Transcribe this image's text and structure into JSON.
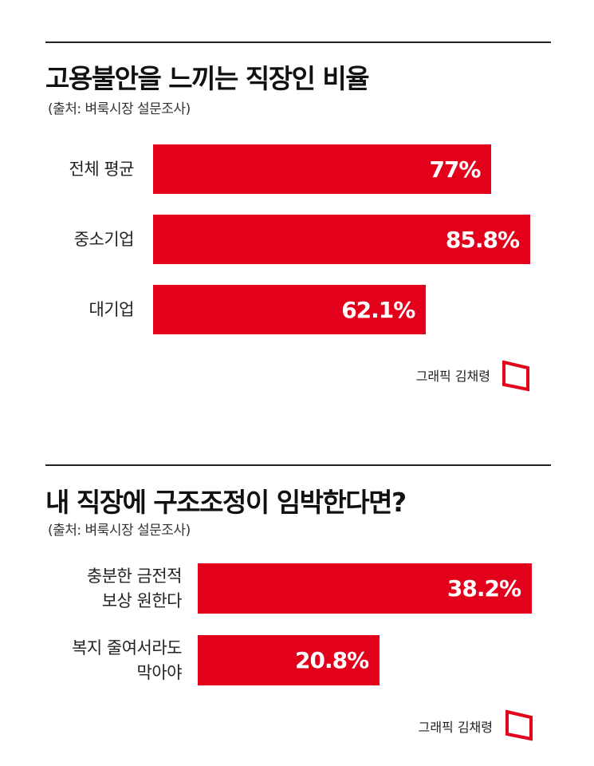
{
  "chart_data": [
    {
      "type": "bar",
      "orientation": "horizontal",
      "title": "고용불안을 느끼는 직장인 비율",
      "subtitle": "(출처: 벼룩시장 설문조사)",
      "categories": [
        "전체 평균",
        "중소기업",
        "대기업"
      ],
      "values": [
        77,
        85.8,
        62.1
      ],
      "value_labels": [
        "77%",
        "85.8%",
        "62.1%"
      ],
      "color": "#e3001b",
      "credit": "그래픽 김채령"
    },
    {
      "type": "bar",
      "orientation": "horizontal",
      "title": "내 직장에 구조조정이 임박한다면?",
      "subtitle": "(출처: 벼룩시장 설문조사)",
      "categories": [
        "충분한 금전적\n보상 원한다",
        "복지 줄여서라도\n막아야"
      ],
      "values": [
        38.2,
        20.8
      ],
      "value_labels": [
        "38.2%",
        "20.8%"
      ],
      "color": "#e3001b",
      "credit": "그래픽 김채령"
    }
  ]
}
